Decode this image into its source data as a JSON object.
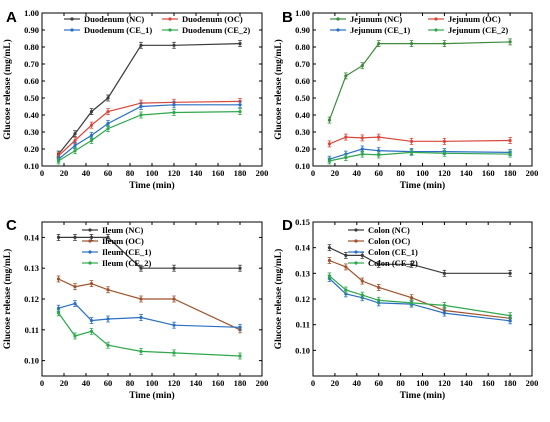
{
  "chart_data": [
    {
      "panel": "A",
      "type": "line",
      "xlabel": "Time (min)",
      "ylabel": "Glucose release (mg/mL)",
      "xlim": [
        0,
        200
      ],
      "ylim": [
        0.1,
        1.0
      ],
      "xticks": [
        0,
        20,
        40,
        60,
        80,
        100,
        120,
        140,
        160,
        180,
        200
      ],
      "xtick_labels": [
        "0",
        "20",
        "40",
        "60",
        "80",
        "100",
        "120",
        "140",
        "160",
        "180",
        "200"
      ],
      "yticks": [
        0.1,
        0.2,
        0.3,
        0.4,
        0.5,
        0.6,
        0.7,
        0.8,
        0.9,
        1.0
      ],
      "ytick_labels": [
        "0.10",
        "0.20",
        "0.30",
        "0.40",
        "0.50",
        "0.60",
        "0.70",
        "0.80",
        "0.90",
        "1.00"
      ],
      "x": [
        15,
        30,
        45,
        60,
        90,
        120,
        180
      ],
      "legend": "top",
      "series": [
        {
          "name": "Duodenum (NC)",
          "color": "#3a3a3a",
          "values": [
            0.17,
            0.29,
            0.42,
            0.5,
            0.81,
            0.81,
            0.82
          ]
        },
        {
          "name": "Duodenum (OC)",
          "color": "#d9473a",
          "values": [
            0.16,
            0.25,
            0.34,
            0.42,
            0.47,
            0.475,
            0.48
          ]
        },
        {
          "name": "Duodenum (CE_1)",
          "color": "#2a6fc2",
          "values": [
            0.14,
            0.22,
            0.28,
            0.35,
            0.45,
            0.46,
            0.46
          ]
        },
        {
          "name": "Duodenum (CE_2)",
          "color": "#2ea84a",
          "values": [
            0.13,
            0.19,
            0.25,
            0.32,
            0.4,
            0.415,
            0.42
          ]
        }
      ]
    },
    {
      "panel": "B",
      "type": "line",
      "xlabel": "Time (min)",
      "ylabel": "Glucose release (mg/mL)",
      "xlim": [
        0,
        200
      ],
      "ylim": [
        0.1,
        1.0
      ],
      "xticks": [
        0,
        20,
        40,
        60,
        80,
        100,
        120,
        140,
        160,
        180,
        200
      ],
      "xtick_labels": [
        "0",
        "20",
        "40",
        "60",
        "80",
        "100",
        "120",
        "140",
        "160",
        "180",
        "200"
      ],
      "yticks": [
        0.1,
        0.2,
        0.3,
        0.4,
        0.5,
        0.6,
        0.7,
        0.8,
        0.9,
        1.0
      ],
      "ytick_labels": [
        "0.10",
        "0.20",
        "0.30",
        "0.40",
        "0.50",
        "0.60",
        "0.70",
        "0.80",
        "0.90",
        "1.00"
      ],
      "x": [
        15,
        30,
        45,
        60,
        90,
        120,
        180
      ],
      "legend": "top",
      "series": [
        {
          "name": "Jejunum (NC)",
          "color": "#3d8a3d",
          "values": [
            0.37,
            0.63,
            0.69,
            0.82,
            0.82,
            0.82,
            0.83
          ]
        },
        {
          "name": "Jejunum (OC)",
          "color": "#d9473a",
          "values": [
            0.23,
            0.27,
            0.265,
            0.27,
            0.245,
            0.245,
            0.25
          ]
        },
        {
          "name": "Jejunum (CE_1)",
          "color": "#2a6fc2",
          "values": [
            0.14,
            0.17,
            0.2,
            0.19,
            0.185,
            0.185,
            0.18
          ]
        },
        {
          "name": "Jejunum (CE_2)",
          "color": "#2ea84a",
          "values": [
            0.13,
            0.15,
            0.17,
            0.165,
            0.18,
            0.175,
            0.17
          ]
        }
      ]
    },
    {
      "panel": "C",
      "type": "line",
      "xlabel": "Time (min)",
      "ylabel": "Glucose release (mg/mL)",
      "xlim": [
        0,
        200
      ],
      "ylim": [
        0.095,
        0.145
      ],
      "xticks": [
        0,
        20,
        40,
        60,
        80,
        100,
        120,
        140,
        160,
        180,
        200
      ],
      "xtick_labels": [
        "0",
        "20",
        "40",
        "60",
        "80",
        "100",
        "120",
        "140",
        "160",
        "180",
        "200"
      ],
      "yticks": [
        0.1,
        0.11,
        0.12,
        0.13,
        0.14
      ],
      "ytick_labels": [
        "0.10",
        "0.11",
        "0.12",
        "0.13",
        "0.14"
      ],
      "x": [
        15,
        30,
        45,
        60,
        90,
        120,
        180
      ],
      "legend": "top-right",
      "series": [
        {
          "name": "Ileum (NC)",
          "color": "#3a3a3a",
          "values": [
            0.14,
            0.14,
            0.14,
            0.14,
            0.13,
            0.13,
            0.13
          ]
        },
        {
          "name": "Ileum (OC)",
          "color": "#a0522d",
          "values": [
            0.1265,
            0.124,
            0.125,
            0.123,
            0.12,
            0.12,
            0.11
          ]
        },
        {
          "name": "Ileum (CE_1)",
          "color": "#2a6fc2",
          "values": [
            0.117,
            0.1185,
            0.113,
            0.1135,
            0.114,
            0.1115,
            0.1108
          ]
        },
        {
          "name": "Ileum (CE_2)",
          "color": "#2ea84a",
          "values": [
            0.1155,
            0.108,
            0.1095,
            0.105,
            0.103,
            0.1025,
            0.1015
          ]
        }
      ]
    },
    {
      "panel": "D",
      "type": "line",
      "xlabel": "Time (min)",
      "ylabel": "Glucose release (mg/mL)",
      "xlim": [
        0,
        200
      ],
      "ylim": [
        0.09,
        0.15
      ],
      "xticks": [
        0,
        20,
        40,
        60,
        80,
        100,
        120,
        140,
        160,
        180,
        200
      ],
      "xtick_labels": [
        "0",
        "20",
        "40",
        "60",
        "80",
        "100",
        "120",
        "140",
        "160",
        "180",
        "200"
      ],
      "yticks": [
        0.1,
        0.11,
        0.12,
        0.13,
        0.14,
        0.15
      ],
      "ytick_labels": [
        "0.10",
        "0.11",
        "0.12",
        "0.13",
        "0.14",
        "0.15"
      ],
      "x": [
        15,
        30,
        45,
        60,
        90,
        120,
        180
      ],
      "legend": "top-right",
      "series": [
        {
          "name": "Colon (NC)",
          "color": "#3a3a3a",
          "values": [
            0.14,
            0.137,
            0.137,
            0.1335,
            0.1335,
            0.13,
            0.13
          ]
        },
        {
          "name": "Colon (OC)",
          "color": "#a0522d",
          "values": [
            0.135,
            0.1325,
            0.127,
            0.1245,
            0.1205,
            0.1155,
            0.1125
          ]
        },
        {
          "name": "Colon (CE_1)",
          "color": "#2a6fc2",
          "values": [
            0.128,
            0.122,
            0.1205,
            0.1185,
            0.118,
            0.1145,
            0.1115
          ]
        },
        {
          "name": "Colon (CE_2)",
          "color": "#2ea84a",
          "values": [
            0.129,
            0.1235,
            0.1215,
            0.1195,
            0.1185,
            0.1175,
            0.1135
          ]
        }
      ]
    }
  ]
}
